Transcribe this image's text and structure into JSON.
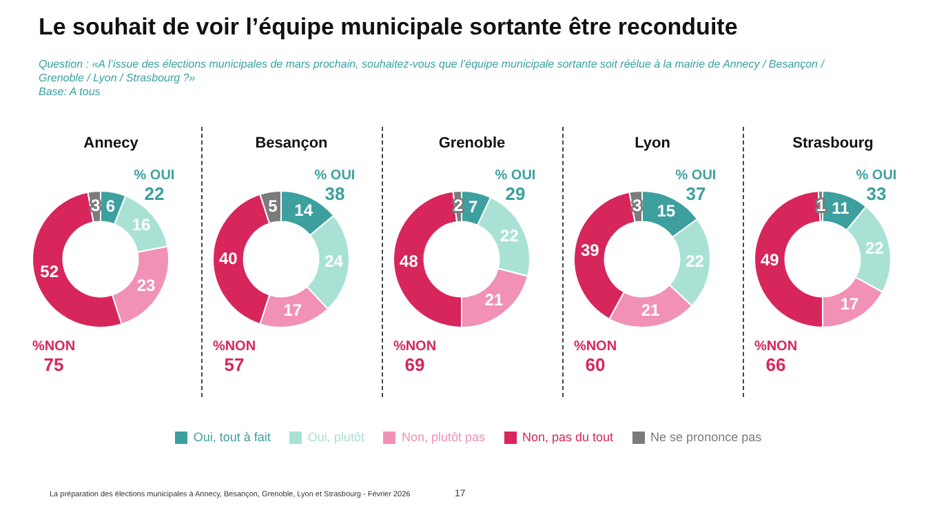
{
  "chart_data": [
    {
      "type": "other",
      "title": "Le souhait de voir l’équipe municipale sortante être reconduite",
      "subtitle": "Question : «A l’issue des élections municipales de mars prochain, souhaitez-vous que l’équipe municipale sortante soit réélue à la mairie de Annecy / Besançon / Grenoble / Lyon / Strasbourg ?»",
      "annotations": [
        "Base: A tous",
        "La préparation des élections municipales à Annecy, Besançon, Grenoble, Lyon et Strasbourg - Février 2026",
        "17"
      ]
    },
    {
      "type": "donut",
      "title": "Annecy",
      "categories": [
        "Oui, tout à fait",
        "Oui, plutôt",
        "Non, plutôt pas",
        "Non, pas du tout",
        "Ne se prononce pas"
      ],
      "values": [
        6,
        16,
        23,
        52,
        3
      ],
      "colors": [
        "#3e9f9f",
        "#a9e2d5",
        "#f191b6",
        "#d7265c",
        "#7b7b7b"
      ],
      "data_labels": true,
      "legend": "bottom",
      "annotations": [
        "% OUI",
        "22",
        "%NON",
        "75"
      ]
    },
    {
      "type": "donut",
      "title": "Besançon",
      "categories": [
        null,
        null,
        null,
        null,
        null
      ],
      "values": [
        14,
        24,
        17,
        40,
        5
      ],
      "colors": [
        "#3e9f9f",
        "#a9e2d5",
        "#f191b6",
        "#d7265c",
        "#7b7b7b"
      ],
      "data_labels": true,
      "annotations": [
        "% OUI",
        "38",
        "%NON",
        "57"
      ]
    },
    {
      "type": "donut",
      "title": "Grenoble",
      "categories": [
        null,
        null,
        null,
        null,
        null
      ],
      "values": [
        7,
        22,
        21,
        48,
        2
      ],
      "colors": [
        "#3e9f9f",
        "#a9e2d5",
        "#f191b6",
        "#d7265c",
        "#7b7b7b"
      ],
      "data_labels": true,
      "annotations": [
        "% OUI",
        "29",
        "%NON",
        "69"
      ]
    },
    {
      "type": "donut",
      "title": "Lyon",
      "categories": [
        null,
        null,
        null,
        null,
        null
      ],
      "values": [
        15,
        22,
        21,
        39,
        3
      ],
      "colors": [
        "#3e9f9f",
        "#a9e2d5",
        "#f191b6",
        "#d7265c",
        "#7b7b7b"
      ],
      "data_labels": true,
      "annotations": [
        "% OUI",
        "37",
        "%NON",
        "60"
      ]
    },
    {
      "type": "donut",
      "title": "Strasbourg",
      "categories": [
        null,
        null,
        null,
        null,
        null
      ],
      "values": [
        11,
        22,
        17,
        49,
        1
      ],
      "colors": [
        "#3e9f9f",
        "#a9e2d5",
        "#f191b6",
        "#d7265c",
        "#7b7b7b"
      ],
      "data_labels": true,
      "annotations": [
        "% OUI",
        "33",
        "%NON",
        "66"
      ]
    }
  ]
}
